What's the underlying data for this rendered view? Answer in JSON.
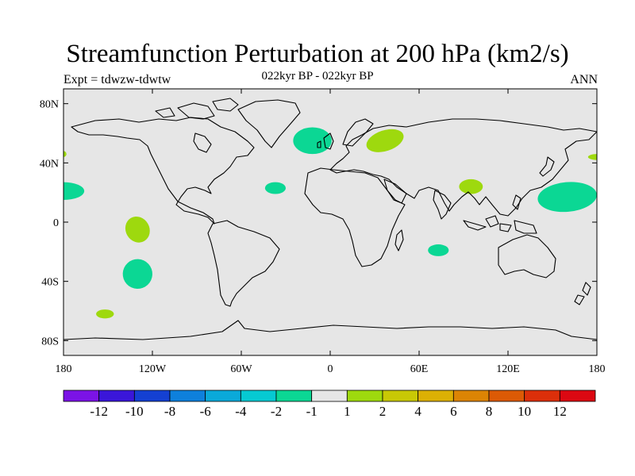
{
  "title": "Streamfunction Perturbation at 200 hPa (km2/s)",
  "experiment": "Expt = tdwzw-tdwtw",
  "period": "022kyr BP - 022kyr BP",
  "season": "ANN",
  "chart_data": {
    "type": "map-contour",
    "projection": "cylindrical-equidistant",
    "lon_range": [
      -180,
      180
    ],
    "lat_range": [
      -90,
      90
    ],
    "lon_ticks": [
      {
        "value": -180,
        "label": "180"
      },
      {
        "value": -120,
        "label": "120W"
      },
      {
        "value": -60,
        "label": "60W"
      },
      {
        "value": 0,
        "label": "0"
      },
      {
        "value": 60,
        "label": "60E"
      },
      {
        "value": 120,
        "label": "120E"
      },
      {
        "value": 180,
        "label": "180"
      }
    ],
    "lat_ticks": [
      {
        "value": 80,
        "label": "80N"
      },
      {
        "value": 40,
        "label": "40N"
      },
      {
        "value": 0,
        "label": "0"
      },
      {
        "value": -40,
        "label": "40S"
      },
      {
        "value": -80,
        "label": "80S"
      }
    ],
    "colorbar": {
      "labels": [
        "-12",
        "-10",
        "-8",
        "-6",
        "-4",
        "-2",
        "-1",
        "1",
        "2",
        "4",
        "6",
        "8",
        "10",
        "12"
      ],
      "colors": [
        "#7b13e6",
        "#3a16d9",
        "#1440d2",
        "#0e80dc",
        "#0aa9d9",
        "#06c9d2",
        "#0bd794",
        "#e6e6e6",
        "#9ed90e",
        "#c8c805",
        "#dcb004",
        "#dc8404",
        "#dc5a05",
        "#dc2f0a",
        "#dc0812"
      ]
    },
    "anomalies": [
      {
        "name": "north-atlantic-negative",
        "lon": -12,
        "lat": 55,
        "rx_deg": 13,
        "ry_deg": 9,
        "rotation": 0,
        "class": "-2 to -1",
        "color": "#0bd794"
      },
      {
        "name": "europe-positive",
        "lon": 37,
        "lat": 55,
        "rx_deg": 13,
        "ry_deg": 7,
        "rotation": -18,
        "class": "1 to 2",
        "color": "#9ed90e"
      },
      {
        "name": "subtropical-atlantic-negative",
        "lon": -37,
        "lat": 23,
        "rx_deg": 7,
        "ry_deg": 4,
        "rotation": 0,
        "class": "-2 to -1",
        "color": "#0bd794"
      },
      {
        "name": "west-pacific-negative",
        "lon": 160,
        "lat": 17,
        "rx_deg": 20,
        "ry_deg": 10,
        "rotation": -5,
        "class": "-2 to -1",
        "color": "#0bd794"
      },
      {
        "name": "east-pacific-negative",
        "lon": -180,
        "lat": 21,
        "rx_deg": 14,
        "ry_deg": 6,
        "rotation": 0,
        "class": "-2 to -1",
        "color": "#0bd794"
      },
      {
        "name": "south-asia-positive",
        "lon": 95,
        "lat": 24,
        "rx_deg": 8,
        "ry_deg": 5,
        "rotation": 0,
        "class": "1 to 2",
        "color": "#9ed90e"
      },
      {
        "name": "north-pacific-edge-positive",
        "lon": 180,
        "lat": 44,
        "rx_deg": 6,
        "ry_deg": 2,
        "rotation": 0,
        "class": "1 to 2",
        "color": "#9ed90e"
      },
      {
        "name": "atlantic-edge-positive",
        "lon": -180,
        "lat": 46,
        "rx_deg": 2,
        "ry_deg": 2,
        "rotation": 0,
        "class": "1 to 2",
        "color": "#9ed90e"
      },
      {
        "name": "tropical-pacific-positive",
        "lon": -130,
        "lat": -5,
        "rx_deg": 8,
        "ry_deg": 9,
        "rotation": -30,
        "class": "1 to 2",
        "color": "#9ed90e"
      },
      {
        "name": "south-pacific-negative",
        "lon": -130,
        "lat": -35,
        "rx_deg": 10,
        "ry_deg": 10,
        "rotation": 25,
        "class": "-2 to -1",
        "color": "#0bd794"
      },
      {
        "name": "indian-ocean-negative",
        "lon": 73,
        "lat": -19,
        "rx_deg": 7,
        "ry_deg": 4,
        "rotation": 0,
        "class": "-2 to -1",
        "color": "#0bd794"
      },
      {
        "name": "southern-ocean-positive",
        "lon": -152,
        "lat": -62,
        "rx_deg": 6,
        "ry_deg": 3,
        "rotation": 0,
        "class": "1 to 2",
        "color": "#9ed90e"
      }
    ]
  },
  "colors": {
    "background": "#e6e6e6",
    "coastline": "#000000",
    "frame": "#000000"
  }
}
